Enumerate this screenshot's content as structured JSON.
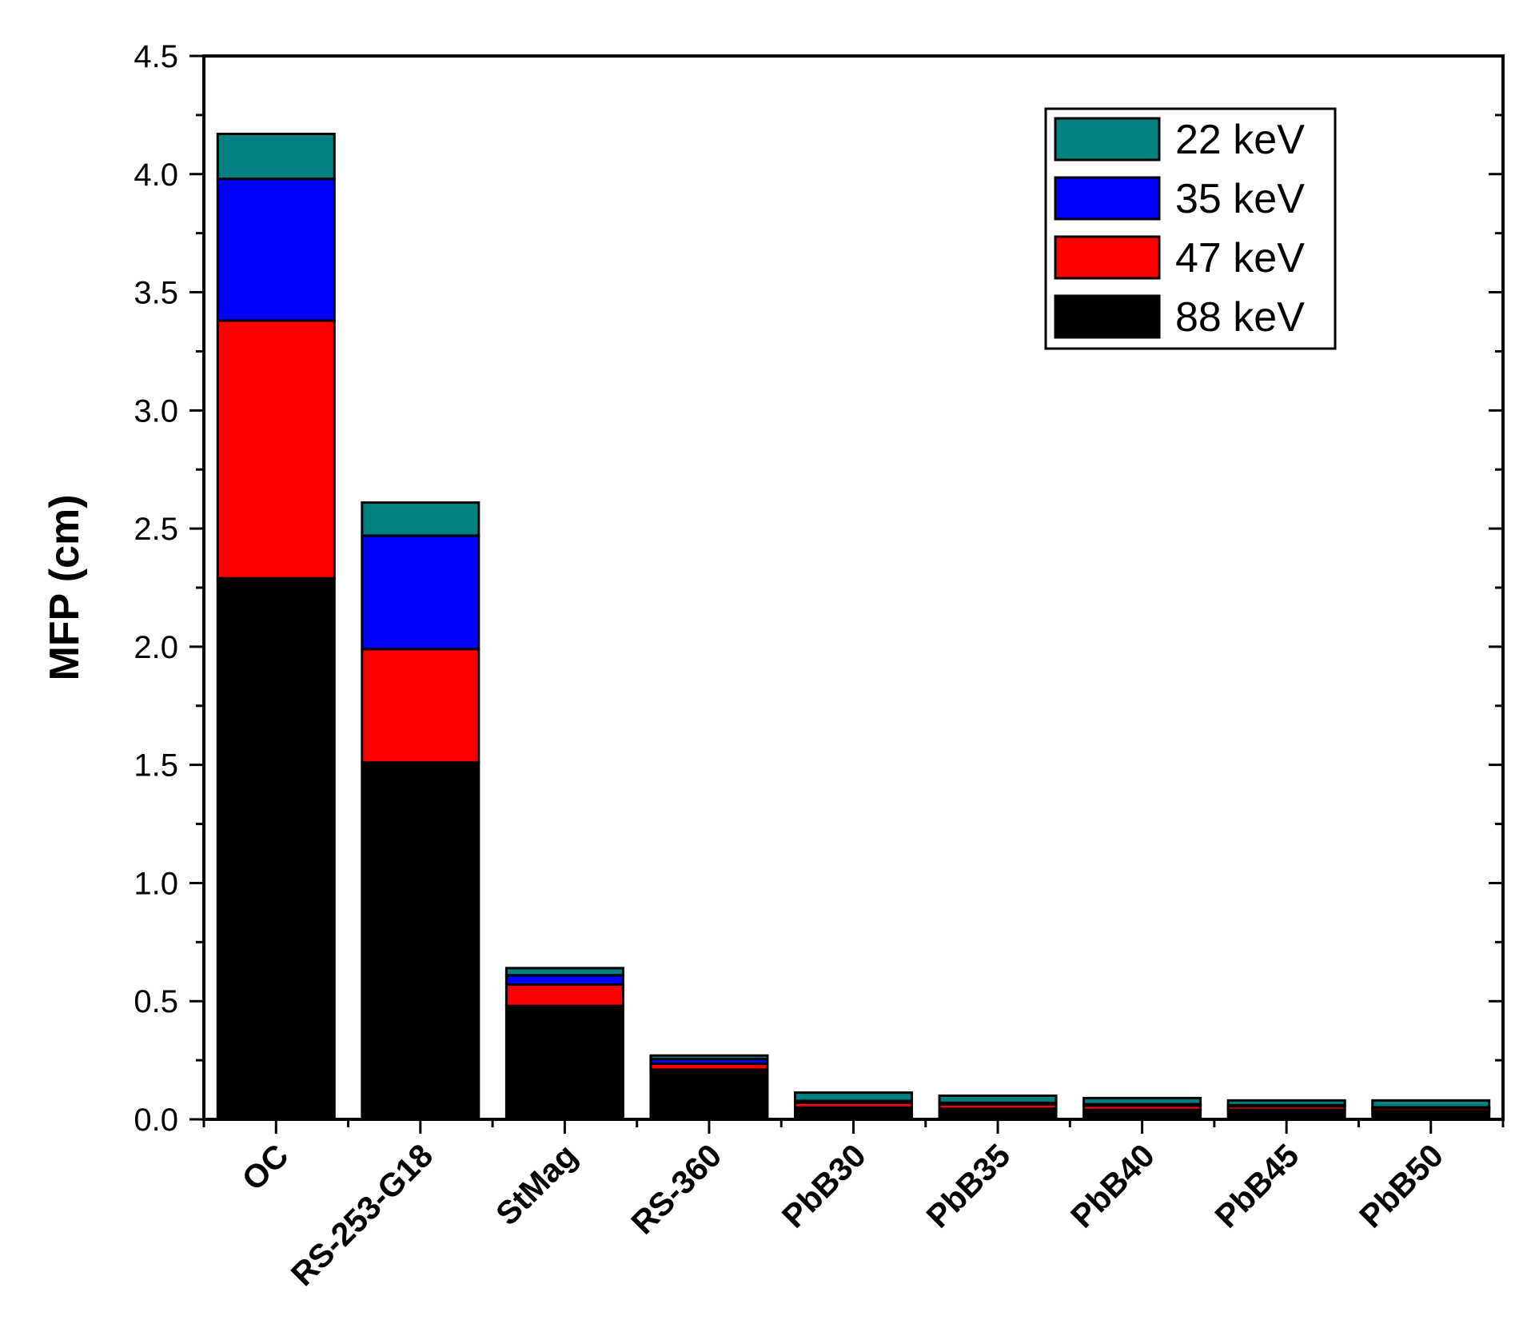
{
  "chart_data": {
    "type": "bar",
    "stacked": true,
    "ylabel": "MFP (cm)",
    "xlabel": "",
    "ylim": [
      0,
      4.5
    ],
    "yticks": [
      "0.0",
      "0.5",
      "1.0",
      "1.5",
      "2.0",
      "2.5",
      "3.0",
      "3.5",
      "4.0",
      "4.5"
    ],
    "categories": [
      "OC",
      "RS-253-G18",
      "StMag",
      "RS-360",
      "PbB30",
      "PbB35",
      "PbB40",
      "PbB45",
      "PbB50"
    ],
    "series": [
      {
        "name": "88 keV",
        "color": "#000000",
        "values": [
          2.29,
          1.51,
          0.48,
          0.21,
          0.05,
          0.045,
          0.04,
          0.04,
          0.035
        ]
      },
      {
        "name": "47 keV",
        "color": "#ff0000",
        "values": [
          1.09,
          0.48,
          0.09,
          0.025,
          0.02,
          0.018,
          0.018,
          0.015,
          0.012
        ]
      },
      {
        "name": "35 keV",
        "color": "#0000ff",
        "values": [
          0.6,
          0.48,
          0.04,
          0.02,
          0.008,
          0.007,
          0.006,
          0.005,
          0.004
        ]
      },
      {
        "name": "22 keV",
        "color": "#008080",
        "values": [
          0.19,
          0.14,
          0.03,
          0.015,
          0.035,
          0.03,
          0.026,
          0.02,
          0.029
        ]
      }
    ],
    "legend_position": "top-right",
    "legend_order": [
      "22 keV",
      "35 keV",
      "47 keV",
      "88 keV"
    ],
    "grid": false
  }
}
